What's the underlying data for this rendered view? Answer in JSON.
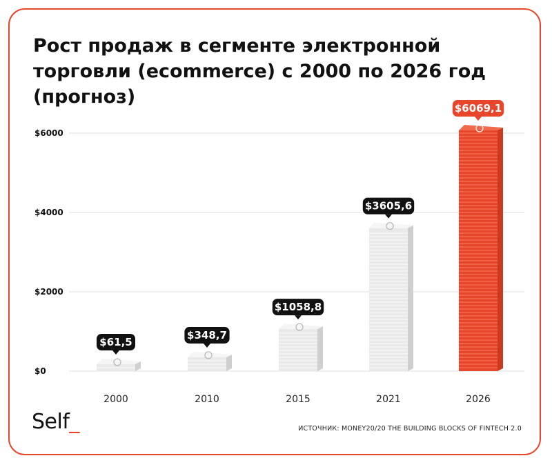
{
  "title": "Рост продаж в сегменте электронной торговли (ecommerce) с 2000 по 2026 год (прогноз)",
  "source": "ИСТОЧНИК: MONEY20/20 THE BUILDING BLOCKS OF FINTECH 2.0",
  "brand": {
    "name": "Self",
    "cursor": "_"
  },
  "colors": {
    "accent": "#e8462a",
    "bar_default": "#e9e9e9",
    "label_bg": "#111111",
    "highlight": "#e8462a"
  },
  "chart_data": {
    "type": "bar",
    "categories": [
      "2000",
      "2010",
      "2015",
      "2021",
      "2026"
    ],
    "values": [
      61.5,
      348.7,
      1058.8,
      3605.6,
      6069.1
    ],
    "value_labels": [
      "61,5",
      "348,7",
      "1058,8",
      "3605,6",
      "6069,1"
    ],
    "currency_symbol": "$",
    "highlight_category": "2026",
    "yticks": [
      "$0",
      "$2000",
      "$4000",
      "$6000"
    ],
    "ytick_values": [
      0,
      2000,
      4000,
      6000
    ],
    "ylim": [
      0,
      6000
    ],
    "grid": true,
    "bar_icon": "money-stack-icon"
  }
}
